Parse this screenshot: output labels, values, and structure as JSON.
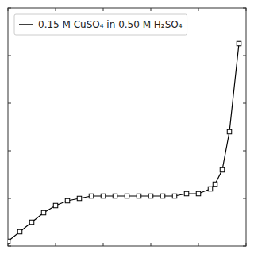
{
  "chart_data": {
    "type": "line",
    "x": [
      0.0,
      0.05,
      0.1,
      0.15,
      0.2,
      0.25,
      0.3,
      0.35,
      0.4,
      0.45,
      0.5,
      0.55,
      0.6,
      0.65,
      0.7,
      0.75,
      0.8,
      0.85,
      0.87,
      0.9,
      0.93,
      0.97
    ],
    "series": [
      {
        "name": "0.15 M CuSO₄ in 0.50 M H₂SO₄",
        "color": "#000000",
        "marker": "square",
        "values": [
          0.02,
          0.06,
          0.1,
          0.14,
          0.17,
          0.19,
          0.2,
          0.21,
          0.21,
          0.21,
          0.21,
          0.21,
          0.21,
          0.21,
          0.21,
          0.22,
          0.22,
          0.24,
          0.26,
          0.32,
          0.48,
          0.85
        ]
      }
    ],
    "xlim": [
      0,
      1.0
    ],
    "ylim": [
      0,
      1.0
    ],
    "xticks": [
      0,
      0.2,
      0.4,
      0.6,
      0.8,
      1.0
    ],
    "yticks": [
      0,
      0.2,
      0.4,
      0.6,
      0.8,
      1.0
    ],
    "tick_labels": false,
    "legend": "upper left"
  }
}
